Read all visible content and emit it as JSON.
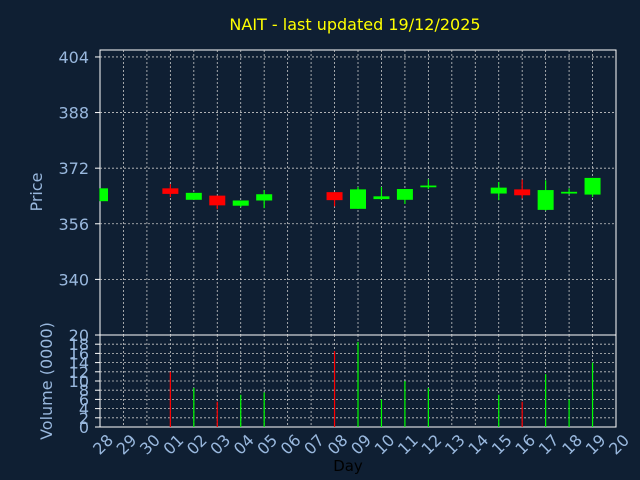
{
  "chart_data": [
    {
      "type": "candlestick",
      "title": "NAIT - last updated 19/12/2025",
      "ylabel": "Price",
      "ylim": [
        324,
        406
      ],
      "yticks": [
        "404",
        "388",
        "372",
        "356",
        "340"
      ],
      "ytick_values": [
        404,
        388,
        372,
        356,
        340
      ],
      "grid": true,
      "colors": {
        "up": "#00ff00",
        "down": "#ff0000",
        "background": "#0f1f33",
        "grid": "#c8c8c8",
        "text": "#99b8de",
        "title": "#ffff00"
      },
      "x": [
        "28",
        "29",
        "30",
        "01",
        "02",
        "03",
        "04",
        "05",
        "06",
        "07",
        "08",
        "09",
        "10",
        "11",
        "12",
        "13",
        "14",
        "15",
        "16",
        "17",
        "18",
        "19",
        "20"
      ],
      "candles": [
        {
          "day": "28",
          "open": 362.5,
          "close": 366.2,
          "high": 366.2,
          "low": 362.5,
          "dir": "up"
        },
        {
          "day": "01",
          "open": 366.2,
          "close": 364.6,
          "high": 367.4,
          "low": 363.7,
          "dir": "down"
        },
        {
          "day": "02",
          "open": 362.9,
          "close": 364.9,
          "high": 364.9,
          "low": 362.9,
          "dir": "up"
        },
        {
          "day": "03",
          "open": 364.1,
          "close": 361.3,
          "high": 364.1,
          "low": 360.2,
          "dir": "down"
        },
        {
          "day": "04",
          "open": 361.2,
          "close": 362.7,
          "high": 362.7,
          "low": 360.8,
          "dir": "up"
        },
        {
          "day": "05",
          "open": 362.7,
          "close": 364.5,
          "high": 365.7,
          "low": 360.5,
          "dir": "up"
        },
        {
          "day": "08",
          "open": 365.1,
          "close": 362.8,
          "high": 365.1,
          "low": 361.0,
          "dir": "down"
        },
        {
          "day": "09",
          "open": 360.3,
          "close": 365.9,
          "high": 366.6,
          "low": 360.3,
          "dir": "up"
        },
        {
          "day": "10",
          "open": 363.1,
          "close": 363.9,
          "high": 366.6,
          "low": 362.9,
          "dir": "up"
        },
        {
          "day": "11",
          "open": 362.9,
          "close": 366.0,
          "high": 366.0,
          "low": 361.7,
          "dir": "up"
        },
        {
          "day": "12",
          "open": 366.5,
          "close": 367.0,
          "high": 368.8,
          "low": 366.0,
          "dir": "up"
        },
        {
          "day": "15",
          "open": 364.7,
          "close": 366.4,
          "high": 368.0,
          "low": 362.8,
          "dir": "up"
        },
        {
          "day": "16",
          "open": 365.9,
          "close": 364.2,
          "high": 368.7,
          "low": 363.3,
          "dir": "down"
        },
        {
          "day": "17",
          "open": 360.0,
          "close": 365.7,
          "high": 368.5,
          "low": 359.8,
          "dir": "up"
        },
        {
          "day": "18",
          "open": 364.7,
          "close": 365.2,
          "high": 366.2,
          "low": 364.5,
          "dir": "up"
        },
        {
          "day": "19",
          "open": 364.4,
          "close": 369.2,
          "high": 369.2,
          "low": 363.7,
          "dir": "up"
        }
      ]
    },
    {
      "type": "bar",
      "ylabel": "Volume (0000)",
      "xlabel": "Day",
      "ylim": [
        0,
        20
      ],
      "yticks": [
        "20",
        "18",
        "16",
        "14",
        "12",
        "10",
        "8",
        "6",
        "4",
        "2",
        "0"
      ],
      "ytick_values": [
        20,
        18,
        16,
        14,
        12,
        10,
        8,
        6,
        4,
        2,
        0
      ],
      "x": [
        "28",
        "29",
        "30",
        "01",
        "02",
        "03",
        "04",
        "05",
        "06",
        "07",
        "08",
        "09",
        "10",
        "11",
        "12",
        "13",
        "14",
        "15",
        "16",
        "17",
        "18",
        "19",
        "20"
      ],
      "volumes": [
        {
          "day": "28",
          "value": 0,
          "dir": "up"
        },
        {
          "day": "01",
          "value": 12,
          "dir": "down"
        },
        {
          "day": "02",
          "value": 8.5,
          "dir": "up"
        },
        {
          "day": "03",
          "value": 5.5,
          "dir": "down"
        },
        {
          "day": "04",
          "value": 7,
          "dir": "up"
        },
        {
          "day": "05",
          "value": 7.5,
          "dir": "up"
        },
        {
          "day": "08",
          "value": 16.5,
          "dir": "down"
        },
        {
          "day": "09",
          "value": 18.5,
          "dir": "up"
        },
        {
          "day": "10",
          "value": 6,
          "dir": "up"
        },
        {
          "day": "11",
          "value": 10,
          "dir": "up"
        },
        {
          "day": "12",
          "value": 8.5,
          "dir": "up"
        },
        {
          "day": "15",
          "value": 7,
          "dir": "up"
        },
        {
          "day": "16",
          "value": 5.5,
          "dir": "down"
        },
        {
          "day": "17",
          "value": 11.5,
          "dir": "up"
        },
        {
          "day": "18",
          "value": 6,
          "dir": "up"
        },
        {
          "day": "19",
          "value": 14,
          "dir": "up"
        }
      ]
    }
  ]
}
